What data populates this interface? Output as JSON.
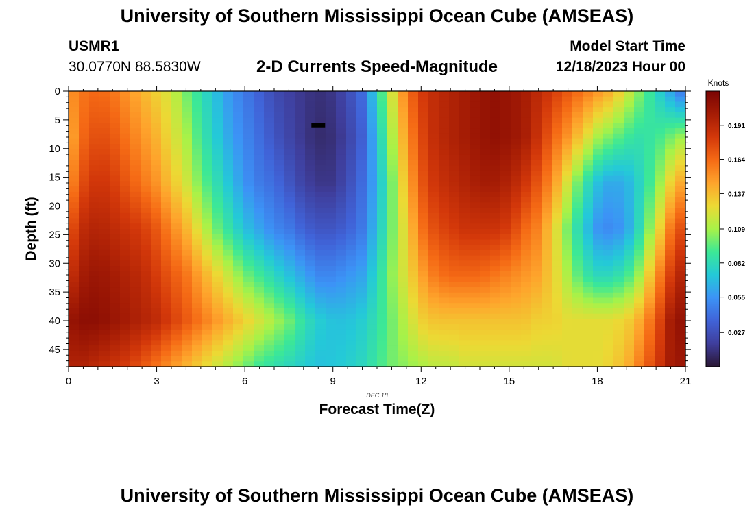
{
  "page": {
    "title": "University of Southern Mississippi Ocean Cube (AMSEAS)",
    "footer_title": "University of Southern Mississippi Ocean Cube (AMSEAS)"
  },
  "header": {
    "station_id": "USMR1",
    "coordinates": "30.0770N  88.5830W",
    "plot_title": "2-D Currents Speed-Magnitude",
    "model_start_label": "Model Start Time",
    "model_start_value": "12/18/2023 Hour 00"
  },
  "chart_data": {
    "type": "heatmap",
    "title": "2-D Currents Speed-Magnitude",
    "xlabel": "Forecast Time(Z)",
    "ylabel": "Depth (ft)",
    "date_label": "DEC 18",
    "xlim": [
      0,
      21
    ],
    "ylim": [
      0,
      48
    ],
    "y_inverted": true,
    "x_ticks": [
      0,
      3,
      6,
      9,
      12,
      15,
      18,
      21
    ],
    "y_ticks": [
      0,
      5,
      10,
      15,
      20,
      25,
      30,
      35,
      40,
      45
    ],
    "time_hours": [
      0,
      0.5,
      1,
      1.5,
      2,
      2.5,
      3,
      3.5,
      4,
      4.5,
      5,
      5.5,
      6,
      6.5,
      7,
      7.5,
      8,
      8.5,
      9,
      9.5,
      10,
      10.5,
      11,
      11.5,
      12,
      12.5,
      13,
      13.5,
      14,
      14.5,
      15,
      15.5,
      16,
      16.5,
      17,
      17.5,
      18,
      18.5,
      19,
      19.5,
      20,
      20.5,
      21
    ],
    "depth_ft": [
      0,
      8,
      16,
      24,
      32,
      40,
      48
    ],
    "speed_knots": [
      [
        0.15,
        0.14,
        0.15,
        0.17,
        0.185,
        0.205,
        0.195
      ],
      [
        0.16,
        0.165,
        0.175,
        0.19,
        0.2,
        0.21,
        0.195
      ],
      [
        0.165,
        0.175,
        0.185,
        0.195,
        0.205,
        0.21,
        0.19
      ],
      [
        0.16,
        0.17,
        0.18,
        0.19,
        0.2,
        0.205,
        0.185
      ],
      [
        0.15,
        0.16,
        0.17,
        0.185,
        0.195,
        0.2,
        0.18
      ],
      [
        0.14,
        0.15,
        0.16,
        0.18,
        0.19,
        0.195,
        0.17
      ],
      [
        0.13,
        0.14,
        0.15,
        0.17,
        0.18,
        0.19,
        0.16
      ],
      [
        0.12,
        0.125,
        0.135,
        0.155,
        0.17,
        0.18,
        0.15
      ],
      [
        0.1,
        0.11,
        0.12,
        0.14,
        0.16,
        0.17,
        0.14
      ],
      [
        0.085,
        0.09,
        0.1,
        0.12,
        0.145,
        0.16,
        0.13
      ],
      [
        0.07,
        0.075,
        0.085,
        0.1,
        0.13,
        0.15,
        0.12
      ],
      [
        0.055,
        0.06,
        0.07,
        0.085,
        0.115,
        0.14,
        0.11
      ],
      [
        0.045,
        0.05,
        0.055,
        0.07,
        0.1,
        0.13,
        0.1
      ],
      [
        0.035,
        0.04,
        0.045,
        0.06,
        0.09,
        0.12,
        0.09
      ],
      [
        0.025,
        0.03,
        0.04,
        0.05,
        0.08,
        0.11,
        0.085
      ],
      [
        0.02,
        0.022,
        0.03,
        0.045,
        0.07,
        0.1,
        0.08
      ],
      [
        0.015,
        0.015,
        0.02,
        0.035,
        0.06,
        0.085,
        0.075
      ],
      [
        0.012,
        0.01,
        0.015,
        0.03,
        0.05,
        0.075,
        0.07
      ],
      [
        0.015,
        0.012,
        0.015,
        0.03,
        0.05,
        0.07,
        0.072
      ],
      [
        0.025,
        0.02,
        0.025,
        0.035,
        0.055,
        0.07,
        0.075
      ],
      [
        0.04,
        0.035,
        0.04,
        0.045,
        0.06,
        0.075,
        0.08
      ],
      [
        0.08,
        0.07,
        0.065,
        0.07,
        0.08,
        0.085,
        0.09
      ],
      [
        0.12,
        0.11,
        0.1,
        0.1,
        0.105,
        0.1,
        0.1
      ],
      [
        0.16,
        0.15,
        0.14,
        0.13,
        0.125,
        0.115,
        0.105
      ],
      [
        0.18,
        0.175,
        0.17,
        0.16,
        0.145,
        0.13,
        0.11
      ],
      [
        0.19,
        0.19,
        0.185,
        0.175,
        0.16,
        0.135,
        0.115
      ],
      [
        0.195,
        0.195,
        0.19,
        0.18,
        0.165,
        0.135,
        0.115
      ],
      [
        0.2,
        0.2,
        0.195,
        0.185,
        0.165,
        0.135,
        0.12
      ],
      [
        0.205,
        0.205,
        0.2,
        0.185,
        0.165,
        0.135,
        0.12
      ],
      [
        0.208,
        0.208,
        0.2,
        0.185,
        0.16,
        0.135,
        0.12
      ],
      [
        0.205,
        0.205,
        0.195,
        0.18,
        0.155,
        0.135,
        0.12
      ],
      [
        0.2,
        0.2,
        0.185,
        0.165,
        0.15,
        0.135,
        0.12
      ],
      [
        0.19,
        0.185,
        0.17,
        0.155,
        0.145,
        0.13,
        0.12
      ],
      [
        0.18,
        0.165,
        0.15,
        0.13,
        0.13,
        0.13,
        0.12
      ],
      [
        0.17,
        0.15,
        0.12,
        0.1,
        0.11,
        0.125,
        0.125
      ],
      [
        0.16,
        0.13,
        0.09,
        0.075,
        0.09,
        0.125,
        0.125
      ],
      [
        0.15,
        0.11,
        0.07,
        0.055,
        0.08,
        0.125,
        0.125
      ],
      [
        0.14,
        0.1,
        0.06,
        0.05,
        0.08,
        0.125,
        0.13
      ],
      [
        0.12,
        0.09,
        0.065,
        0.06,
        0.09,
        0.13,
        0.14
      ],
      [
        0.1,
        0.085,
        0.08,
        0.085,
        0.11,
        0.145,
        0.16
      ],
      [
        0.08,
        0.09,
        0.1,
        0.12,
        0.15,
        0.17,
        0.18
      ],
      [
        0.06,
        0.1,
        0.13,
        0.16,
        0.18,
        0.2,
        0.2
      ],
      [
        0.04,
        0.11,
        0.15,
        0.18,
        0.2,
        0.21,
        0.205
      ]
    ],
    "colorbar": {
      "label": "Knots",
      "min": 0.0,
      "max": 0.218,
      "ticks": [
        0.027,
        0.055,
        0.082,
        0.109,
        0.137,
        0.164,
        0.191
      ],
      "colors": [
        "#2a1633",
        "#3f3e9c",
        "#4063d8",
        "#3c93f6",
        "#24c9d8",
        "#3ce896",
        "#a8f248",
        "#ecd934",
        "#fea42c",
        "#f56a15",
        "#d3380a",
        "#a51c05",
        "#7a0403"
      ]
    },
    "marker": {
      "time_hours": 8.5,
      "depth_ft": 6
    }
  }
}
